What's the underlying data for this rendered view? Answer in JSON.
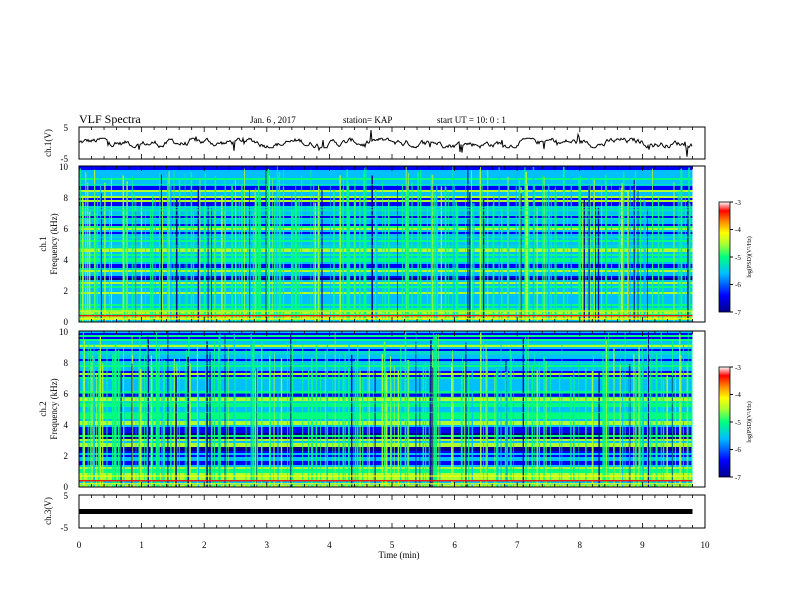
{
  "header": {
    "title": "VLF Spectra",
    "date": "Jan. 6 , 2017",
    "station": "station= KAP",
    "start": "start UT =  10: 0 : 1"
  },
  "colors": {
    "axis": "#000000",
    "trace": "#000000",
    "colormap": [
      "#00008b",
      "#0000ff",
      "#00bfff",
      "#00ff7f",
      "#adff2f",
      "#ffff00",
      "#ff8c00",
      "#ff0000",
      "#ffffff"
    ]
  },
  "chart_data": [
    {
      "type": "line",
      "name": "ch1-waveform",
      "ylabel": "ch.1(V)",
      "xlim": [
        0,
        10
      ],
      "ylim": [
        -5,
        5
      ],
      "y_ticks": [
        "5",
        "-5"
      ],
      "x_extent_min": 9.8,
      "level_range": [
        -1.5,
        1.5
      ]
    },
    {
      "type": "heatmap",
      "name": "ch1-spectrogram",
      "ylabel_lines": [
        "ch.1",
        "Frequency (kHz)"
      ],
      "xlim": [
        0,
        10
      ],
      "ylim": [
        0,
        10
      ],
      "y_ticks": [
        "0",
        "2",
        "4",
        "6",
        "8",
        "10"
      ],
      "x_extent_min": 9.8,
      "colorbar": {
        "label": "log(PSD)(V²/Hz)",
        "range": [
          -7,
          -3
        ],
        "ticks": [
          "-3",
          "-4",
          "-5",
          "-6",
          "-7"
        ]
      }
    },
    {
      "type": "heatmap",
      "name": "ch2-spectrogram",
      "ylabel_lines": [
        "ch.2",
        "Frequency (kHz)"
      ],
      "xlim": [
        0,
        10
      ],
      "ylim": [
        0,
        10
      ],
      "y_ticks": [
        "0",
        "2",
        "4",
        "6",
        "8",
        "10"
      ],
      "x_extent_min": 9.8,
      "colorbar": {
        "label": "log(PSD)(V²/Hz)",
        "range": [
          -7,
          -3
        ],
        "ticks": [
          "-3",
          "-4",
          "-5",
          "-6",
          "-7"
        ]
      }
    },
    {
      "type": "line",
      "name": "ch3-waveform",
      "ylabel": "ch.3(V)",
      "xlim": [
        0,
        10
      ],
      "ylim": [
        -5,
        5
      ],
      "y_ticks": [
        "5",
        "-5"
      ],
      "x_extent_min": 9.8,
      "constant_level": 0
    }
  ],
  "x_axis": {
    "label": "Time (min)",
    "ticks": [
      "0",
      "1",
      "2",
      "3",
      "4",
      "5",
      "6",
      "7",
      "8",
      "9",
      "10"
    ]
  }
}
